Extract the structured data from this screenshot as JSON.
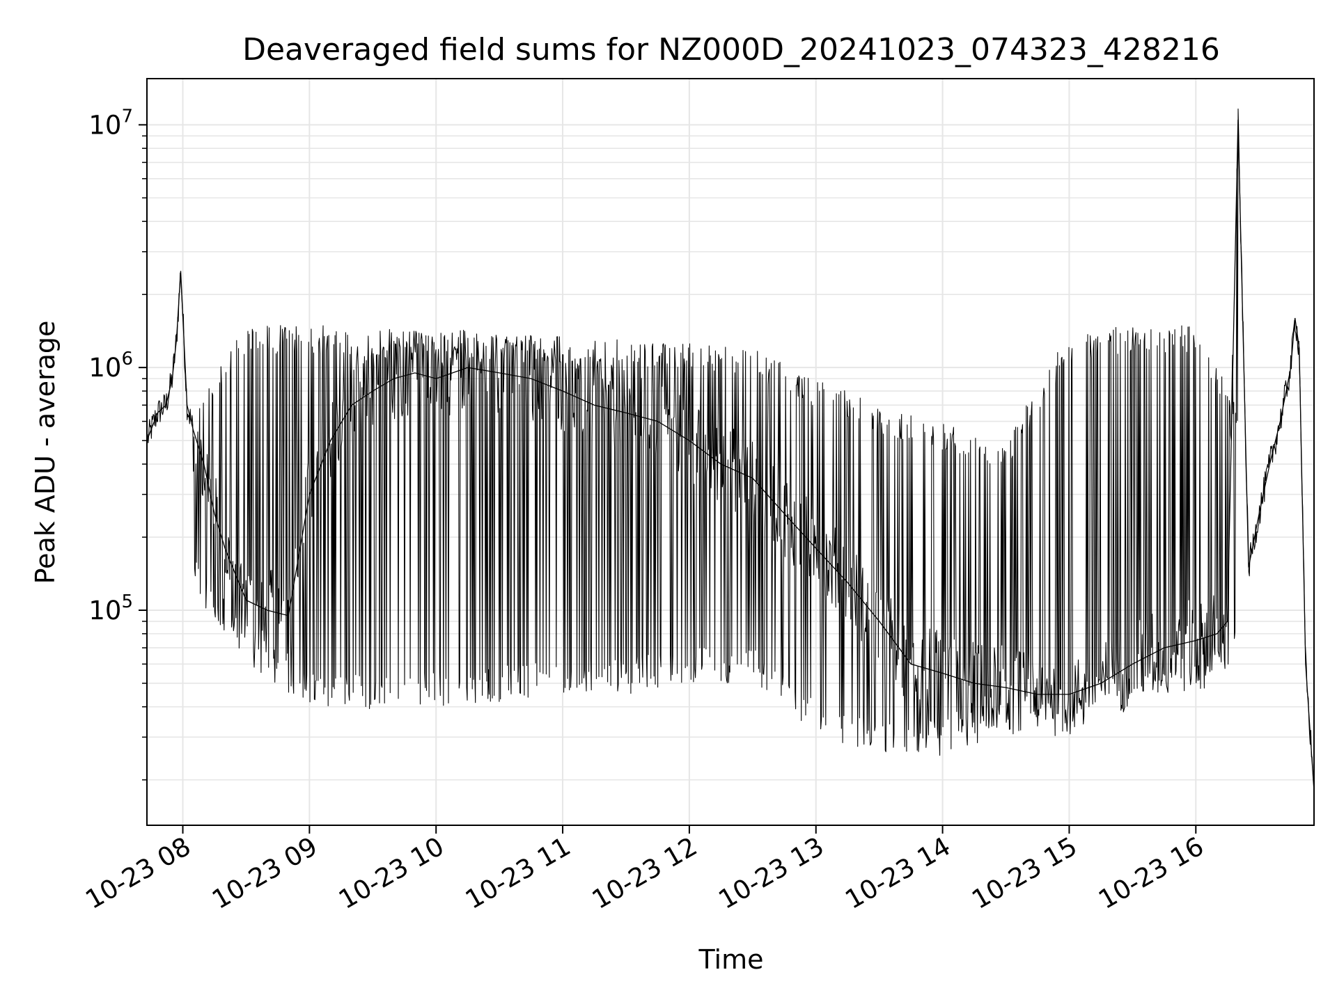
{
  "chart_data": {
    "type": "line",
    "title": "Deaveraged field sums for NZ000D_20241023_074323_428216",
    "xlabel": "Time",
    "ylabel": "Peak ADU - average",
    "yscale": "log",
    "xlim": [
      "2024-10-23 07:43",
      "2024-10-23 16:56"
    ],
    "ylim": [
      13000,
      15500000
    ],
    "grid": true,
    "x_ticks": [
      {
        "value": "2024-10-23 08:00",
        "label": "10-23 08"
      },
      {
        "value": "2024-10-23 09:00",
        "label": "10-23 09"
      },
      {
        "value": "2024-10-23 10:00",
        "label": "10-23 10"
      },
      {
        "value": "2024-10-23 11:00",
        "label": "10-23 11"
      },
      {
        "value": "2024-10-23 12:00",
        "label": "10-23 12"
      },
      {
        "value": "2024-10-23 13:00",
        "label": "10-23 13"
      },
      {
        "value": "2024-10-23 14:00",
        "label": "10-23 14"
      },
      {
        "value": "2024-10-23 15:00",
        "label": "10-23 15"
      },
      {
        "value": "2024-10-23 16:00",
        "label": "10-23 16"
      }
    ],
    "y_ticks": [
      {
        "value": 100000,
        "base": "10",
        "exp": "5"
      },
      {
        "value": 1000000,
        "base": "10",
        "exp": "6"
      },
      {
        "value": 10000000,
        "base": "10",
        "exp": "7"
      }
    ],
    "colors": {
      "line": "#000000",
      "grid": "#e6e6e6",
      "axes": "#000000"
    },
    "series": [
      {
        "x": [
          "2024-10-23 07:43",
          "2024-10-23 07:48",
          "2024-10-23 07:52",
          "2024-10-23 07:55",
          "2024-10-23 07:57",
          "2024-10-23 07:59",
          "2024-10-23 08:02",
          "2024-10-23 08:05",
          "2024-10-23 08:10",
          "2024-10-23 08:15",
          "2024-10-23 08:20",
          "2024-10-23 08:25",
          "2024-10-23 08:30",
          "2024-10-23 08:40",
          "2024-10-23 08:50",
          "2024-10-23 09:00",
          "2024-10-23 09:10",
          "2024-10-23 09:20",
          "2024-10-23 09:30",
          "2024-10-23 09:40",
          "2024-10-23 09:50",
          "2024-10-23 10:00",
          "2024-10-23 10:15",
          "2024-10-23 10:30",
          "2024-10-23 10:45",
          "2024-10-23 11:00",
          "2024-10-23 11:15",
          "2024-10-23 11:30",
          "2024-10-23 11:45",
          "2024-10-23 12:00",
          "2024-10-23 12:15",
          "2024-10-23 12:30",
          "2024-10-23 12:45",
          "2024-10-23 13:00",
          "2024-10-23 13:15",
          "2024-10-23 13:30",
          "2024-10-23 13:45",
          "2024-10-23 14:00",
          "2024-10-23 14:15",
          "2024-10-23 14:30",
          "2024-10-23 14:45",
          "2024-10-23 15:00",
          "2024-10-23 15:15",
          "2024-10-23 15:30",
          "2024-10-23 15:45",
          "2024-10-23 16:00",
          "2024-10-23 16:10",
          "2024-10-23 16:15",
          "2024-10-23 16:20",
          "2024-10-23 16:25",
          "2024-10-23 16:30",
          "2024-10-23 16:35",
          "2024-10-23 16:40",
          "2024-10-23 16:45",
          "2024-10-23 16:47",
          "2024-10-23 16:49",
          "2024-10-23 16:52",
          "2024-10-23 16:56"
        ],
        "y": [
          500000,
          650000,
          700000,
          900000,
          1300000,
          2500000,
          700000,
          550000,
          400000,
          250000,
          180000,
          140000,
          110000,
          100000,
          95000,
          300000,
          500000,
          700000,
          800000,
          900000,
          950000,
          900000,
          1000000,
          950000,
          900000,
          800000,
          700000,
          650000,
          600000,
          500000,
          400000,
          350000,
          250000,
          180000,
          130000,
          90000,
          60000,
          55000,
          50000,
          48000,
          45000,
          45000,
          50000,
          60000,
          70000,
          75000,
          80000,
          90000,
          10500000,
          150000,
          250000,
          400000,
          600000,
          1000000,
          1600000,
          1200000,
          60000,
          18000
        ]
      }
    ],
    "annotations": [
      {
        "type": "envelope",
        "x": [
          "2024-10-23 08:05",
          "2024-10-23 08:30",
          "2024-10-23 09:00",
          "2024-10-23 09:30",
          "2024-10-23 10:00",
          "2024-10-23 10:30",
          "2024-10-23 11:00",
          "2024-10-23 11:30",
          "2024-10-23 12:00",
          "2024-10-23 12:30",
          "2024-10-23 13:00",
          "2024-10-23 13:30",
          "2024-10-23 14:00",
          "2024-10-23 14:30",
          "2024-10-23 15:00",
          "2024-10-23 15:30",
          "2024-10-23 16:00",
          "2024-10-23 16:20"
        ],
        "upper": [
          700000,
          1500000,
          1500000,
          1450000,
          1400000,
          1400000,
          1350000,
          1300000,
          1300000,
          1200000,
          900000,
          700000,
          600000,
          500000,
          1400000,
          1500000,
          1500000,
          700000
        ],
        "lower": [
          120000,
          60000,
          40000,
          38000,
          40000,
          42000,
          45000,
          45000,
          50000,
          50000,
          30000,
          25000,
          25000,
          30000,
          35000,
          45000,
          45000,
          60000
        ]
      }
    ]
  }
}
